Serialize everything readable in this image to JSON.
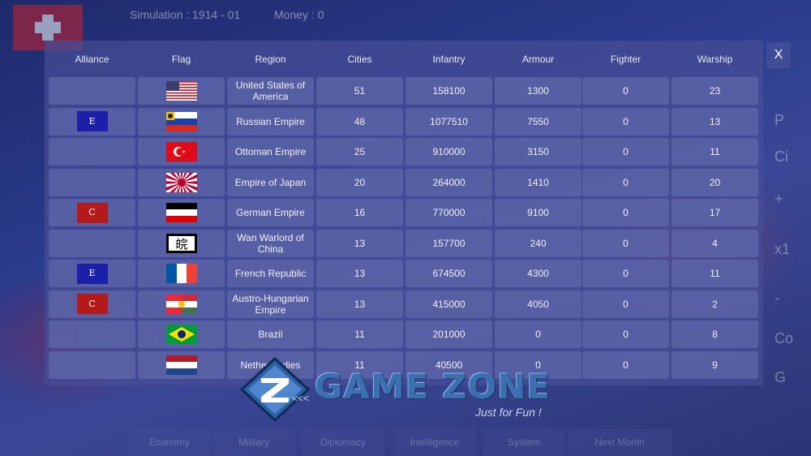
{
  "topbar": {
    "simulation": "Simulation : 1914 - 01",
    "money": "Money : 0"
  },
  "close_label": "X",
  "headers": {
    "alliance": "Alliance",
    "flag": "Flag",
    "region": "Region",
    "cities": "Cities",
    "infantry": "Infantry",
    "armour": "Armour",
    "fighter": "Fighter",
    "warship": "Warship"
  },
  "rows": [
    {
      "alliance": "",
      "flag": "usa",
      "region": "United States of America",
      "cities": "51",
      "infantry": "158100",
      "armour": "1300",
      "fighter": "0",
      "warship": "23"
    },
    {
      "alliance": "E",
      "flag": "russia",
      "region": "Russian Empire",
      "cities": "48",
      "infantry": "1077510",
      "armour": "7550",
      "fighter": "0",
      "warship": "13"
    },
    {
      "alliance": "",
      "flag": "ottoman",
      "region": "Ottoman Empire",
      "cities": "25",
      "infantry": "910000",
      "armour": "3150",
      "fighter": "0",
      "warship": "11"
    },
    {
      "alliance": "",
      "flag": "japan",
      "region": "Empire of Japan",
      "cities": "20",
      "infantry": "264000",
      "armour": "1410",
      "fighter": "0",
      "warship": "20"
    },
    {
      "alliance": "C",
      "flag": "germany",
      "region": "German Empire",
      "cities": "16",
      "infantry": "770000",
      "armour": "9100",
      "fighter": "0",
      "warship": "17"
    },
    {
      "alliance": "",
      "flag": "wan",
      "region": "Wan Warlord of China",
      "cities": "13",
      "infantry": "157700",
      "armour": "240",
      "fighter": "0",
      "warship": "4"
    },
    {
      "alliance": "E",
      "flag": "france",
      "region": "French Republic",
      "cities": "13",
      "infantry": "674500",
      "armour": "4300",
      "fighter": "0",
      "warship": "11"
    },
    {
      "alliance": "C",
      "flag": "austria",
      "region": "Austro-Hungarian Empire",
      "cities": "13",
      "infantry": "415000",
      "armour": "4050",
      "fighter": "0",
      "warship": "2"
    },
    {
      "alliance": "",
      "flag": "brazil",
      "region": "Brazil",
      "cities": "11",
      "infantry": "201000",
      "armour": "0",
      "fighter": "0",
      "warship": "8"
    },
    {
      "alliance": "",
      "flag": "netherlands",
      "region": "Netherl    Indies",
      "cities": "11",
      "infantry": "40500",
      "armour": "0",
      "fighter": "0",
      "warship": "9"
    }
  ],
  "wan_glyph": "皖",
  "alliance_colors": {
    "E": "#1c1fa8",
    "C": "#b51a1a"
  },
  "side_buttons": [
    "P",
    "Ci",
    "+",
    "x1",
    "-",
    "Co",
    "G"
  ],
  "bottom_buttons": [
    "Economy",
    "Military",
    "Diplomacy",
    "Intelligence",
    "System",
    "Next Month"
  ],
  "watermark": {
    "brand": "GAME ZONE",
    "tagline": "Just for Fun !",
    "arrows": "<<<"
  }
}
